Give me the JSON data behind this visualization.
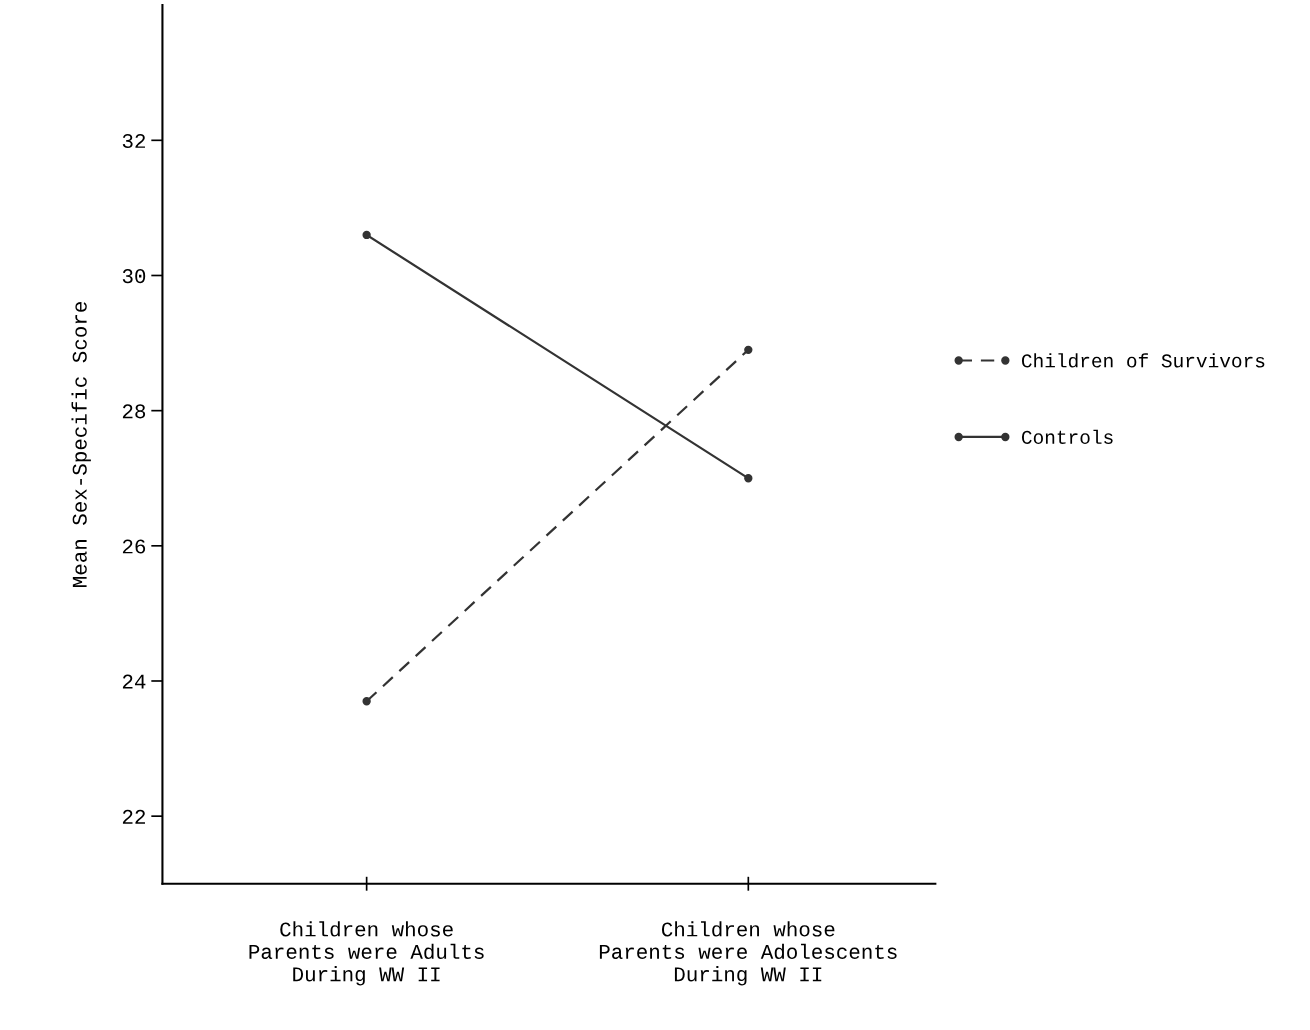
{
  "chart_data": {
    "type": "line",
    "ylabel": "Mean Sex-Specific Score",
    "categories": [
      "Children whose\nParents were Adults\nDuring WW II",
      "Children whose\nParents were Adolescents\nDuring WW II"
    ],
    "series": [
      {
        "name": "Children of Survivors",
        "color": "#333333",
        "values": [
          23.7,
          28.9
        ],
        "line_style": "dashed"
      },
      {
        "name": "Controls",
        "color": "#333333",
        "values": [
          30.6,
          27.0
        ],
        "line_style": "solid"
      }
    ],
    "ylim": [
      21,
      34
    ],
    "yticks": [
      22,
      24,
      26,
      28,
      30,
      32
    ],
    "marker": "circle",
    "grid": false,
    "legend": "right"
  }
}
